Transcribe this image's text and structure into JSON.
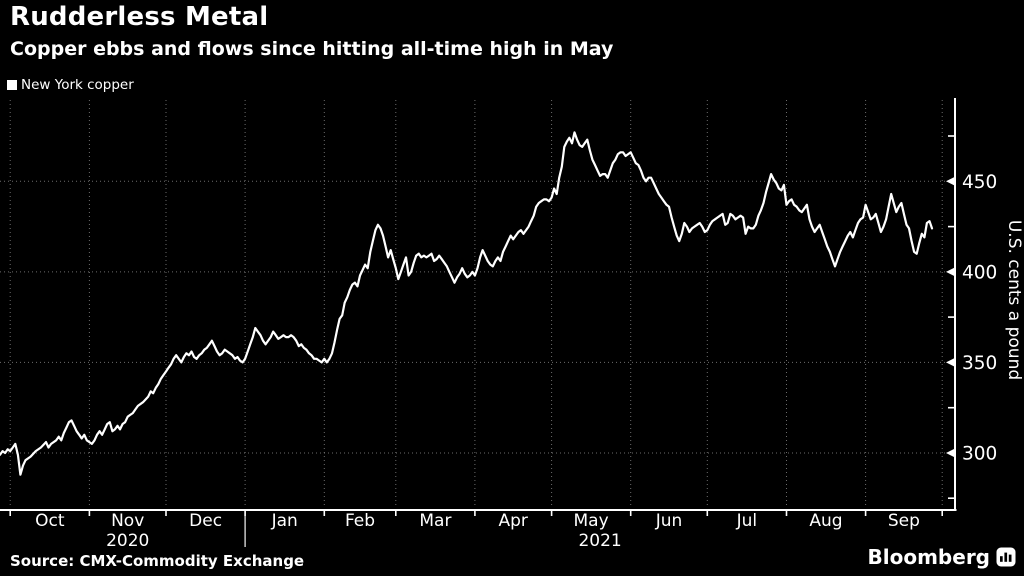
{
  "header": {
    "title": "Rudderless Metal",
    "subtitle": "Copper ebbs and flows since hitting all-time high in May"
  },
  "legend": {
    "label": "New York copper",
    "swatch_color": "#ffffff"
  },
  "footer": {
    "source": "Source: CMX-Commodity Exchange",
    "brand": "Bloomberg"
  },
  "colors": {
    "background": "#000000",
    "line": "#ffffff",
    "axis": "#ffffff",
    "grid": "#808080",
    "text": "#ffffff"
  },
  "chart_data": {
    "type": "line",
    "title": "Rudderless Metal",
    "subtitle": "Copper ebbs and flows since hitting all-time high in May",
    "series_name": "New York copper",
    "xlabel": "",
    "ylabel": "U.S. cents a pound",
    "x_unit": "days since 2020-10-01",
    "ylim": [
      268.5,
      496
    ],
    "x_domain_days": [
      -4,
      370
    ],
    "grid": "dotted",
    "legend_position": "top-left",
    "y_ticks_labeled": [
      450,
      400,
      350,
      300
    ],
    "y_ticks_minor": [
      475,
      425,
      375,
      325,
      275
    ],
    "month_start_days": [
      0,
      31,
      61,
      92,
      123,
      151,
      182,
      212,
      243,
      273,
      304,
      335,
      365
    ],
    "x_months": [
      "Oct",
      "Nov",
      "Dec",
      "Jan",
      "Feb",
      "Mar",
      "Apr",
      "May",
      "Jun",
      "Jul",
      "Aug",
      "Sep"
    ],
    "year_labels": [
      {
        "label": "2020",
        "center_day": 46
      },
      {
        "label": "2021",
        "center_day": 231
      }
    ],
    "year_divider_day": 92,
    "points": [
      [
        -4,
        299
      ],
      [
        -3,
        301
      ],
      [
        -2,
        300
      ],
      [
        -1,
        302
      ],
      [
        0,
        301
      ],
      [
        1,
        303
      ],
      [
        2,
        305
      ],
      [
        3,
        299
      ],
      [
        4,
        288
      ],
      [
        5,
        293
      ],
      [
        6,
        296
      ],
      [
        8,
        298
      ],
      [
        10,
        301
      ],
      [
        12,
        303
      ],
      [
        14,
        306
      ],
      [
        15,
        303
      ],
      [
        16,
        305
      ],
      [
        18,
        307
      ],
      [
        19,
        309
      ],
      [
        20,
        307
      ],
      [
        21,
        311
      ],
      [
        22,
        314
      ],
      [
        23,
        317
      ],
      [
        24,
        318
      ],
      [
        25,
        315
      ],
      [
        26,
        312
      ],
      [
        27,
        310
      ],
      [
        28,
        308
      ],
      [
        29,
        310
      ],
      [
        30,
        307
      ],
      [
        31,
        306
      ],
      [
        32,
        305
      ],
      [
        33,
        307
      ],
      [
        34,
        310
      ],
      [
        35,
        312
      ],
      [
        36,
        310
      ],
      [
        37,
        313
      ],
      [
        38,
        316
      ],
      [
        39,
        317
      ],
      [
        40,
        312
      ],
      [
        41,
        313
      ],
      [
        42,
        315
      ],
      [
        43,
        313
      ],
      [
        44,
        316
      ],
      [
        45,
        317
      ],
      [
        46,
        320
      ],
      [
        47,
        321
      ],
      [
        48,
        322
      ],
      [
        49,
        324
      ],
      [
        50,
        326
      ],
      [
        52,
        328
      ],
      [
        54,
        331
      ],
      [
        55,
        334
      ],
      [
        56,
        333
      ],
      [
        57,
        336
      ],
      [
        58,
        338
      ],
      [
        59,
        341
      ],
      [
        60,
        343
      ],
      [
        61,
        345
      ],
      [
        62,
        347
      ],
      [
        63,
        349
      ],
      [
        64,
        352
      ],
      [
        65,
        354
      ],
      [
        66,
        352
      ],
      [
        67,
        350
      ],
      [
        68,
        353
      ],
      [
        69,
        355
      ],
      [
        70,
        354
      ],
      [
        71,
        356
      ],
      [
        72,
        353
      ],
      [
        73,
        352
      ],
      [
        74,
        354
      ],
      [
        75,
        355
      ],
      [
        76,
        357
      ],
      [
        77,
        358
      ],
      [
        78,
        360
      ],
      [
        79,
        362
      ],
      [
        80,
        359
      ],
      [
        81,
        356
      ],
      [
        82,
        354
      ],
      [
        83,
        355
      ],
      [
        84,
        357
      ],
      [
        85,
        356
      ],
      [
        86,
        355
      ],
      [
        87,
        354
      ],
      [
        88,
        352
      ],
      [
        89,
        353
      ],
      [
        90,
        351
      ],
      [
        91,
        350
      ],
      [
        92,
        352
      ],
      [
        93,
        356
      ],
      [
        94,
        360
      ],
      [
        95,
        364
      ],
      [
        96,
        369
      ],
      [
        97,
        367
      ],
      [
        98,
        365
      ],
      [
        99,
        362
      ],
      [
        100,
        360
      ],
      [
        101,
        362
      ],
      [
        102,
        364
      ],
      [
        103,
        367
      ],
      [
        104,
        365
      ],
      [
        105,
        363
      ],
      [
        106,
        364
      ],
      [
        107,
        365
      ],
      [
        108,
        364
      ],
      [
        109,
        364
      ],
      [
        110,
        365
      ],
      [
        111,
        364
      ],
      [
        112,
        362
      ],
      [
        113,
        359
      ],
      [
        114,
        360
      ],
      [
        115,
        358
      ],
      [
        116,
        357
      ],
      [
        117,
        355
      ],
      [
        118,
        354
      ],
      [
        119,
        352
      ],
      [
        120,
        352
      ],
      [
        121,
        351
      ],
      [
        122,
        350
      ],
      [
        123,
        352
      ],
      [
        124,
        350
      ],
      [
        125,
        352
      ],
      [
        126,
        355
      ],
      [
        127,
        361
      ],
      [
        128,
        368
      ],
      [
        129,
        374
      ],
      [
        130,
        376
      ],
      [
        131,
        383
      ],
      [
        132,
        386
      ],
      [
        133,
        390
      ],
      [
        134,
        393
      ],
      [
        135,
        394
      ],
      [
        136,
        392
      ],
      [
        137,
        398
      ],
      [
        138,
        401
      ],
      [
        139,
        404
      ],
      [
        140,
        402
      ],
      [
        141,
        411
      ],
      [
        142,
        417
      ],
      [
        143,
        423
      ],
      [
        144,
        426
      ],
      [
        145,
        424
      ],
      [
        146,
        420
      ],
      [
        147,
        414
      ],
      [
        148,
        408
      ],
      [
        149,
        412
      ],
      [
        150,
        407
      ],
      [
        151,
        402
      ],
      [
        152,
        396
      ],
      [
        153,
        400
      ],
      [
        154,
        404
      ],
      [
        155,
        408
      ],
      [
        156,
        398
      ],
      [
        157,
        400
      ],
      [
        158,
        405
      ],
      [
        159,
        409
      ],
      [
        160,
        410
      ],
      [
        161,
        408
      ],
      [
        162,
        409
      ],
      [
        163,
        408
      ],
      [
        164,
        409
      ],
      [
        165,
        410
      ],
      [
        166,
        406
      ],
      [
        167,
        407
      ],
      [
        168,
        409
      ],
      [
        169,
        407
      ],
      [
        170,
        405
      ],
      [
        171,
        403
      ],
      [
        172,
        400
      ],
      [
        173,
        397
      ],
      [
        174,
        394
      ],
      [
        175,
        397
      ],
      [
        176,
        399
      ],
      [
        177,
        402
      ],
      [
        178,
        399
      ],
      [
        179,
        397
      ],
      [
        180,
        398
      ],
      [
        181,
        400
      ],
      [
        182,
        398
      ],
      [
        183,
        402
      ],
      [
        184,
        408
      ],
      [
        185,
        412
      ],
      [
        186,
        409
      ],
      [
        187,
        406
      ],
      [
        188,
        404
      ],
      [
        189,
        403
      ],
      [
        190,
        406
      ],
      [
        191,
        408
      ],
      [
        192,
        406
      ],
      [
        193,
        411
      ],
      [
        194,
        414
      ],
      [
        195,
        417
      ],
      [
        196,
        420
      ],
      [
        197,
        418
      ],
      [
        198,
        420
      ],
      [
        199,
        422
      ],
      [
        200,
        423
      ],
      [
        201,
        421
      ],
      [
        202,
        423
      ],
      [
        203,
        425
      ],
      [
        204,
        428
      ],
      [
        205,
        431
      ],
      [
        206,
        436
      ],
      [
        207,
        438
      ],
      [
        208,
        439
      ],
      [
        209,
        440
      ],
      [
        210,
        440
      ],
      [
        211,
        439
      ],
      [
        212,
        441
      ],
      [
        213,
        446
      ],
      [
        214,
        443
      ],
      [
        215,
        452
      ],
      [
        216,
        458
      ],
      [
        217,
        469
      ],
      [
        218,
        472
      ],
      [
        219,
        474
      ],
      [
        220,
        471
      ],
      [
        221,
        477
      ],
      [
        222,
        473
      ],
      [
        223,
        470
      ],
      [
        224,
        469
      ],
      [
        225,
        471
      ],
      [
        226,
        473
      ],
      [
        227,
        467
      ],
      [
        228,
        462
      ],
      [
        229,
        459
      ],
      [
        230,
        456
      ],
      [
        231,
        453
      ],
      [
        232,
        454
      ],
      [
        233,
        454
      ],
      [
        234,
        452
      ],
      [
        235,
        456
      ],
      [
        236,
        460
      ],
      [
        237,
        462
      ],
      [
        238,
        465
      ],
      [
        239,
        466
      ],
      [
        240,
        466
      ],
      [
        241,
        464
      ],
      [
        242,
        465
      ],
      [
        243,
        466
      ],
      [
        244,
        463
      ],
      [
        245,
        460
      ],
      [
        246,
        459
      ],
      [
        247,
        456
      ],
      [
        248,
        452
      ],
      [
        249,
        450
      ],
      [
        250,
        452
      ],
      [
        251,
        452
      ],
      [
        252,
        449
      ],
      [
        253,
        446
      ],
      [
        254,
        443
      ],
      [
        255,
        441
      ],
      [
        256,
        439
      ],
      [
        257,
        437
      ],
      [
        258,
        436
      ],
      [
        259,
        430
      ],
      [
        260,
        425
      ],
      [
        261,
        420
      ],
      [
        262,
        417
      ],
      [
        263,
        421
      ],
      [
        264,
        427
      ],
      [
        265,
        425
      ],
      [
        266,
        422
      ],
      [
        267,
        424
      ],
      [
        268,
        425
      ],
      [
        269,
        426
      ],
      [
        270,
        427
      ],
      [
        271,
        425
      ],
      [
        272,
        422
      ],
      [
        273,
        423
      ],
      [
        274,
        426
      ],
      [
        275,
        428
      ],
      [
        276,
        429
      ],
      [
        277,
        430
      ],
      [
        278,
        431
      ],
      [
        279,
        432
      ],
      [
        280,
        426
      ],
      [
        281,
        427
      ],
      [
        282,
        432
      ],
      [
        283,
        431
      ],
      [
        284,
        429
      ],
      [
        285,
        430
      ],
      [
        286,
        431
      ],
      [
        287,
        430
      ],
      [
        288,
        421
      ],
      [
        289,
        425
      ],
      [
        290,
        424
      ],
      [
        291,
        424
      ],
      [
        292,
        426
      ],
      [
        293,
        431
      ],
      [
        294,
        434
      ],
      [
        295,
        438
      ],
      [
        296,
        444
      ],
      [
        297,
        449
      ],
      [
        298,
        454
      ],
      [
        299,
        451
      ],
      [
        300,
        449
      ],
      [
        301,
        446
      ],
      [
        302,
        445
      ],
      [
        303,
        448
      ],
      [
        304,
        437
      ],
      [
        305,
        439
      ],
      [
        306,
        440
      ],
      [
        307,
        437
      ],
      [
        308,
        436
      ],
      [
        309,
        434
      ],
      [
        310,
        433
      ],
      [
        311,
        435
      ],
      [
        312,
        437
      ],
      [
        313,
        429
      ],
      [
        314,
        425
      ],
      [
        315,
        422
      ],
      [
        316,
        424
      ],
      [
        317,
        426
      ],
      [
        318,
        422
      ],
      [
        319,
        418
      ],
      [
        320,
        414
      ],
      [
        321,
        411
      ],
      [
        322,
        407
      ],
      [
        323,
        403
      ],
      [
        324,
        407
      ],
      [
        325,
        411
      ],
      [
        326,
        414
      ],
      [
        327,
        417
      ],
      [
        328,
        420
      ],
      [
        329,
        422
      ],
      [
        330,
        419
      ],
      [
        331,
        423
      ],
      [
        332,
        427
      ],
      [
        333,
        429
      ],
      [
        334,
        430
      ],
      [
        335,
        437
      ],
      [
        336,
        433
      ],
      [
        337,
        429
      ],
      [
        338,
        430
      ],
      [
        339,
        432
      ],
      [
        340,
        427
      ],
      [
        341,
        422
      ],
      [
        342,
        425
      ],
      [
        343,
        429
      ],
      [
        344,
        436
      ],
      [
        345,
        443
      ],
      [
        346,
        438
      ],
      [
        347,
        433
      ],
      [
        348,
        436
      ],
      [
        349,
        438
      ],
      [
        350,
        432
      ],
      [
        351,
        426
      ],
      [
        352,
        424
      ],
      [
        353,
        417
      ],
      [
        354,
        411
      ],
      [
        355,
        410
      ],
      [
        356,
        416
      ],
      [
        357,
        421
      ],
      [
        358,
        419
      ],
      [
        359,
        427
      ],
      [
        360,
        428
      ],
      [
        361,
        424
      ]
    ]
  }
}
